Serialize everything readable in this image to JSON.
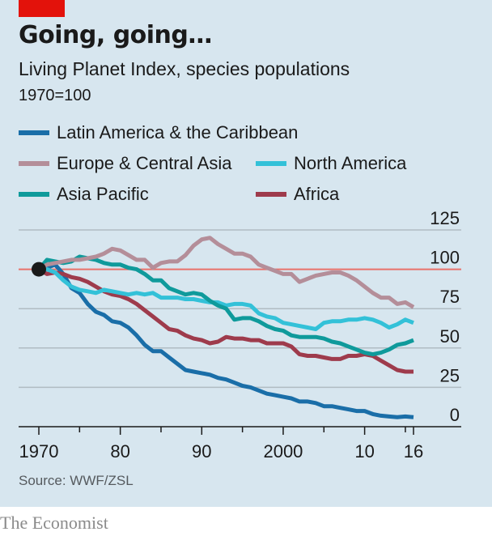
{
  "header": {
    "title": "Going, going…",
    "subtitle": "Living Planet Index, species populations",
    "unit": "1970=100"
  },
  "footer": {
    "source": "Source: WWF/ZSL",
    "brand": "The Economist"
  },
  "colors": {
    "background": "#d7e6ef",
    "brand_red": "#e3120b",
    "reference_line": "#e8716a",
    "gridline": "#b0bcc3",
    "axis": "#1a1a1a"
  },
  "chart_data": {
    "type": "line",
    "title": "Going, going…",
    "subtitle": "Living Planet Index, species populations",
    "ylabel": "1970=100",
    "xlabel": "",
    "xlim": [
      1970,
      2016
    ],
    "ylim": [
      0,
      125
    ],
    "yticks": [
      0,
      25,
      50,
      75,
      100,
      125
    ],
    "ytick_labels": [
      "0",
      "25",
      "50",
      "75",
      "100",
      "125"
    ],
    "xticks_labeled": [
      1970,
      1980,
      1990,
      2000,
      2010,
      2016
    ],
    "xtick_labels": [
      "1970",
      "80",
      "90",
      "2000",
      "10",
      "16"
    ],
    "xticks_minor": [
      1975,
      1985,
      1995,
      2005,
      2015
    ],
    "reference_value": 100,
    "y_axis_side": "right",
    "grid": true,
    "legend_position": "top-left",
    "start_marker": {
      "x": 1970,
      "y": 100
    },
    "x": [
      1970,
      1971,
      1972,
      1973,
      1974,
      1975,
      1976,
      1977,
      1978,
      1979,
      1980,
      1981,
      1982,
      1983,
      1984,
      1985,
      1986,
      1987,
      1988,
      1989,
      1990,
      1991,
      1992,
      1993,
      1994,
      1995,
      1996,
      1997,
      1998,
      1999,
      2000,
      2001,
      2002,
      2003,
      2004,
      2005,
      2006,
      2007,
      2008,
      2009,
      2010,
      2011,
      2012,
      2013,
      2014,
      2015,
      2016
    ],
    "series": [
      {
        "name": "Latin America & the Caribbean",
        "color": "#1a6ea8",
        "values": [
          100,
          101,
          103,
          97,
          88,
          85,
          78,
          73,
          71,
          67,
          66,
          63,
          58,
          52,
          48,
          48,
          44,
          40,
          36,
          35,
          34,
          33,
          31,
          30,
          28,
          26,
          25,
          23,
          21,
          20,
          19,
          18,
          16,
          16,
          15,
          13,
          13,
          12,
          11,
          10,
          10,
          8,
          7,
          6.5,
          6,
          6.5,
          6
        ]
      },
      {
        "name": "Europe & Central Asia",
        "color": "#b48e99",
        "values": [
          100,
          103,
          104,
          105,
          106,
          106,
          107,
          108,
          110,
          113,
          112,
          109,
          106,
          106,
          101,
          104,
          105,
          105,
          109,
          115,
          119,
          120,
          116,
          113,
          110,
          110,
          108,
          103,
          101,
          99,
          97,
          97,
          92,
          94,
          96,
          97,
          98,
          98,
          96,
          93,
          89,
          85,
          82,
          82,
          78,
          79,
          76
        ]
      },
      {
        "name": "North America",
        "color": "#33c1d8",
        "values": [
          100,
          100,
          98,
          93,
          89,
          87,
          86,
          85,
          87,
          86,
          85,
          84,
          85,
          84,
          85,
          82,
          82,
          82,
          81,
          81,
          80,
          79,
          79,
          77,
          78,
          78,
          77,
          72,
          70,
          69,
          66,
          65,
          64,
          63,
          62,
          66,
          67,
          67,
          68,
          68,
          69,
          68,
          66,
          63,
          65,
          68,
          66
        ]
      },
      {
        "name": "Asia Pacific",
        "color": "#0f9a9b",
        "values": [
          100,
          106,
          105,
          104,
          105,
          108,
          107,
          106,
          104,
          103,
          103,
          101,
          100,
          97,
          93,
          93,
          88,
          86,
          84,
          85,
          84,
          80,
          77,
          75,
          68,
          69,
          69,
          67,
          64,
          62,
          61,
          58,
          57,
          57,
          57,
          56,
          54,
          53,
          51,
          49,
          47,
          46,
          47,
          49,
          52,
          53,
          55
        ]
      },
      {
        "name": "Africa",
        "color": "#9e3b4c",
        "values": [
          100,
          97,
          98,
          97,
          95,
          94,
          92,
          89,
          86,
          84,
          83,
          81,
          78,
          74,
          70,
          66,
          62,
          61,
          58,
          56,
          55,
          53,
          54,
          57,
          56,
          56,
          55,
          55,
          53,
          53,
          53,
          51,
          46,
          45,
          45,
          44,
          43,
          43,
          45,
          45,
          46,
          45,
          42,
          39,
          36,
          35,
          35
        ]
      }
    ]
  },
  "legend": [
    {
      "label": "Latin America & the Caribbean",
      "color": "#1a6ea8"
    },
    {
      "label": "Europe & Central Asia",
      "color": "#b48e99"
    },
    {
      "label": "North America",
      "color": "#33c1d8"
    },
    {
      "label": "Asia Pacific",
      "color": "#0f9a9b"
    },
    {
      "label": "Africa",
      "color": "#9e3b4c"
    }
  ]
}
